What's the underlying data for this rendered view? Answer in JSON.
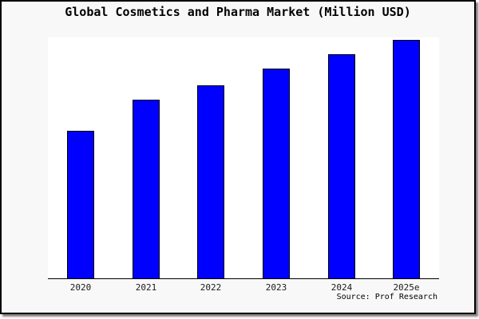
{
  "title": "Global Cosmetics and Pharma Market (Million USD)",
  "source_credit": "Source: Prof Research",
  "colors": {
    "bar_fill": "#0000ff",
    "bar_edge": "#000000",
    "figure_background": "#f8f8f8",
    "plot_background": "#ffffff",
    "axis_line": "#000000",
    "frame_border": "#000000",
    "text": "#000000"
  },
  "chart_data": {
    "type": "bar",
    "title": "Global Cosmetics and Pharma Market (Million USD)",
    "categories": [
      "2020",
      "2021",
      "2022",
      "2023",
      "2024",
      "2025e"
    ],
    "values": [
      62,
      75,
      81,
      88,
      94,
      100
    ],
    "xlabel": "",
    "ylabel": "",
    "ylim": [
      0,
      101
    ],
    "y_axis_visible": false,
    "grid": false,
    "legend": false,
    "annotation": "Source: Prof Research"
  }
}
